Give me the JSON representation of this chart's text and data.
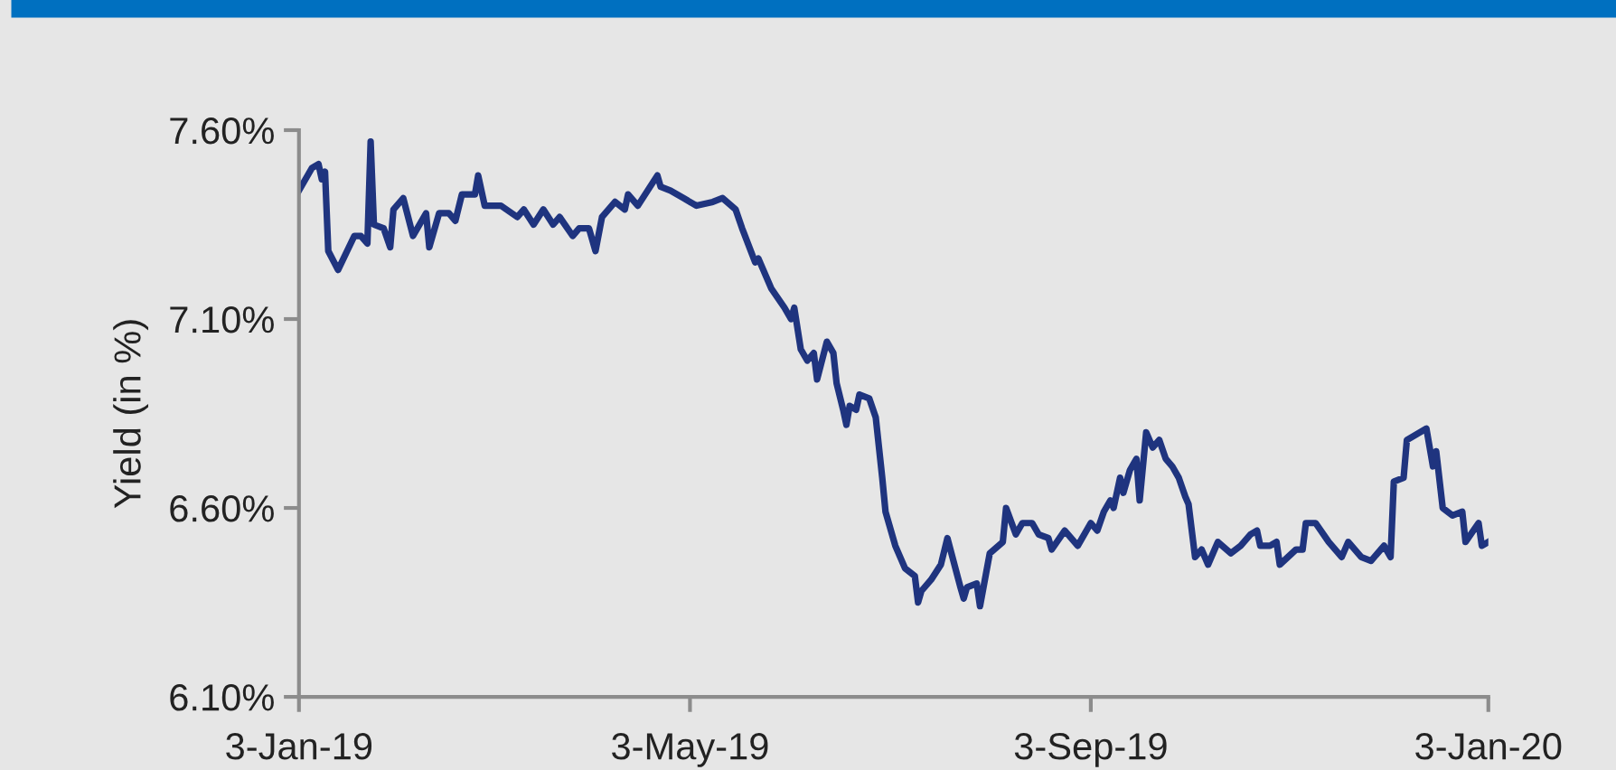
{
  "chart_data": {
    "type": "line",
    "ylabel": "Yield (in %)",
    "ylim": [
      6.1,
      7.6
    ],
    "yticks": [
      {
        "value": 6.1,
        "label": "6.10%"
      },
      {
        "value": 6.6,
        "label": "6.60%"
      },
      {
        "value": 7.1,
        "label": "7.10%"
      },
      {
        "value": 7.6,
        "label": "7.60%"
      }
    ],
    "xlim": [
      "2019-01-03",
      "2020-01-03"
    ],
    "xticks": [
      {
        "value": "2019-01-03",
        "label": "3-Jan-19"
      },
      {
        "value": "2019-05-03",
        "label": "3-May-19"
      },
      {
        "value": "2019-09-03",
        "label": "3-Sep-19"
      },
      {
        "value": "2020-01-03",
        "label": "3-Jan-20"
      }
    ],
    "grid": false,
    "legend": false,
    "marker": "none",
    "line_style": "solid",
    "x": [
      "2019-01-03",
      "2019-01-07",
      "2019-01-09",
      "2019-01-10",
      "2019-01-11",
      "2019-01-12",
      "2019-01-15",
      "2019-01-20",
      "2019-01-22",
      "2019-01-24",
      "2019-01-25",
      "2019-01-26",
      "2019-01-29",
      "2019-01-31",
      "2019-02-01",
      "2019-02-04",
      "2019-02-07",
      "2019-02-11",
      "2019-02-12",
      "2019-02-15",
      "2019-02-18",
      "2019-02-20",
      "2019-02-22",
      "2019-02-26",
      "2019-02-27",
      "2019-03-01",
      "2019-03-06",
      "2019-03-11",
      "2019-03-13",
      "2019-03-16",
      "2019-03-19",
      "2019-03-22",
      "2019-03-24",
      "2019-03-28",
      "2019-03-30",
      "2019-04-02",
      "2019-04-04",
      "2019-04-06",
      "2019-04-10",
      "2019-04-13",
      "2019-04-14",
      "2019-04-17",
      "2019-04-20",
      "2019-04-23",
      "2019-04-24",
      "2019-04-27",
      "2019-05-01",
      "2019-05-05",
      "2019-05-10",
      "2019-05-13",
      "2019-05-17",
      "2019-05-19",
      "2019-05-23",
      "2019-05-24",
      "2019-05-28",
      "2019-06-01",
      "2019-06-03",
      "2019-06-04",
      "2019-06-06",
      "2019-06-08",
      "2019-06-10",
      "2019-06-11",
      "2019-06-14",
      "2019-06-16",
      "2019-06-17",
      "2019-06-19",
      "2019-06-20",
      "2019-06-21",
      "2019-06-23",
      "2019-06-24",
      "2019-06-27",
      "2019-06-29",
      "2019-07-01",
      "2019-07-02",
      "2019-07-05",
      "2019-07-08",
      "2019-07-11",
      "2019-07-12",
      "2019-07-13",
      "2019-07-16",
      "2019-07-19",
      "2019-07-21",
      "2019-07-25",
      "2019-07-26",
      "2019-07-27",
      "2019-07-30",
      "2019-07-31",
      "2019-08-03",
      "2019-08-07",
      "2019-08-08",
      "2019-08-11",
      "2019-08-13",
      "2019-08-16",
      "2019-08-18",
      "2019-08-21",
      "2019-08-22",
      "2019-08-26",
      "2019-08-30",
      "2019-09-03",
      "2019-09-05",
      "2019-09-07",
      "2019-09-09",
      "2019-09-10",
      "2019-09-12",
      "2019-09-13",
      "2019-09-15",
      "2019-09-17",
      "2019-09-18",
      "2019-09-20",
      "2019-09-22",
      "2019-09-24",
      "2019-09-26",
      "2019-09-28",
      "2019-09-30",
      "2019-10-02",
      "2019-10-03",
      "2019-10-05",
      "2019-10-07",
      "2019-10-09",
      "2019-10-11",
      "2019-10-12",
      "2019-10-16",
      "2019-10-19",
      "2019-10-22",
      "2019-10-24",
      "2019-10-25",
      "2019-10-28",
      "2019-10-30",
      "2019-10-31",
      "2019-11-05",
      "2019-11-07",
      "2019-11-08",
      "2019-11-11",
      "2019-11-15",
      "2019-11-19",
      "2019-11-21",
      "2019-11-25",
      "2019-11-28",
      "2019-12-02",
      "2019-12-04",
      "2019-12-05",
      "2019-12-08",
      "2019-12-09",
      "2019-12-11",
      "2019-12-15",
      "2019-12-17",
      "2019-12-18",
      "2019-12-20",
      "2019-12-23",
      "2019-12-26",
      "2019-12-27",
      "2019-12-31",
      "2020-01-01",
      "2020-01-03"
    ],
    "series": [
      {
        "color": "#1f347f",
        "values": [
          7.44,
          7.5,
          7.51,
          7.47,
          7.49,
          7.28,
          7.23,
          7.32,
          7.32,
          7.3,
          7.57,
          7.35,
          7.34,
          7.29,
          7.39,
          7.42,
          7.32,
          7.38,
          7.29,
          7.38,
          7.38,
          7.36,
          7.43,
          7.43,
          7.48,
          7.4,
          7.4,
          7.37,
          7.39,
          7.35,
          7.39,
          7.35,
          7.37,
          7.32,
          7.34,
          7.34,
          7.28,
          7.37,
          7.41,
          7.39,
          7.43,
          7.4,
          7.44,
          7.48,
          7.45,
          7.44,
          7.42,
          7.4,
          7.41,
          7.42,
          7.39,
          7.34,
          7.25,
          7.26,
          7.18,
          7.13,
          7.1,
          7.13,
          7.02,
          6.99,
          7.01,
          6.94,
          7.04,
          7.01,
          6.93,
          6.86,
          6.82,
          6.87,
          6.86,
          6.9,
          6.89,
          6.84,
          6.68,
          6.59,
          6.5,
          6.44,
          6.42,
          6.35,
          6.38,
          6.41,
          6.45,
          6.52,
          6.39,
          6.36,
          6.39,
          6.4,
          6.34,
          6.48,
          6.51,
          6.6,
          6.53,
          6.56,
          6.56,
          6.53,
          6.52,
          6.49,
          6.54,
          6.5,
          6.56,
          6.54,
          6.59,
          6.62,
          6.6,
          6.68,
          6.64,
          6.7,
          6.73,
          6.62,
          6.8,
          6.76,
          6.78,
          6.73,
          6.71,
          6.68,
          6.63,
          6.61,
          6.47,
          6.49,
          6.45,
          6.49,
          6.51,
          6.48,
          6.5,
          6.53,
          6.54,
          6.5,
          6.5,
          6.51,
          6.45,
          6.49,
          6.49,
          6.56,
          6.56,
          6.51,
          6.47,
          6.51,
          6.47,
          6.46,
          6.5,
          6.47,
          6.67,
          6.68,
          6.78,
          6.79,
          6.81,
          6.71,
          6.75,
          6.6,
          6.58,
          6.59,
          6.51,
          6.56,
          6.5,
          6.51
        ]
      }
    ]
  }
}
